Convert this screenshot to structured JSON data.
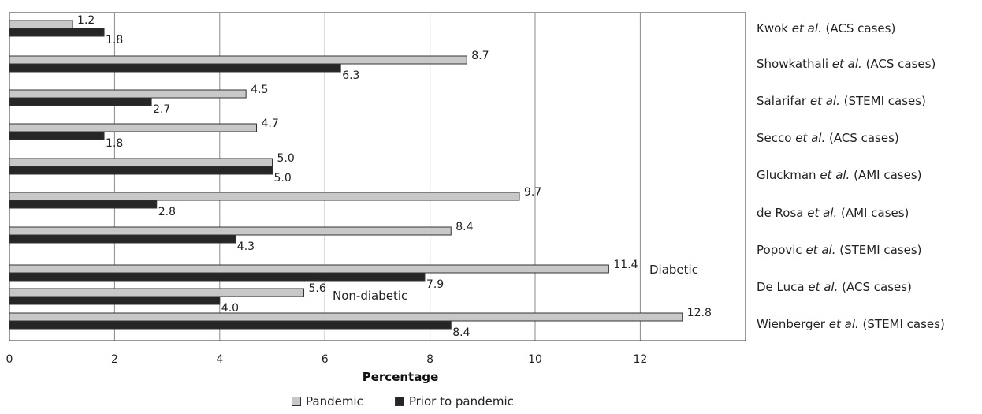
{
  "chart_data": {
    "type": "bar",
    "orientation": "horizontal",
    "xlabel": "Percentage",
    "xlim": [
      0,
      14
    ],
    "x_ticks": [
      0,
      2,
      4,
      6,
      8,
      10,
      12
    ],
    "grid": "vertical",
    "legend_position": "bottom",
    "series": [
      {
        "name": "Pandemic",
        "color": "#c8c8c8"
      },
      {
        "name": "Prior to pandemic",
        "color": "#262626"
      }
    ],
    "rows": [
      {
        "values": [
          1.2,
          1.8
        ],
        "labels": [
          "1.2",
          "1.8"
        ]
      },
      {
        "values": [
          8.7,
          6.3
        ],
        "labels": [
          "8.7",
          "6.3"
        ]
      },
      {
        "values": [
          4.5,
          2.7
        ],
        "labels": [
          "4.5",
          "2.7"
        ]
      },
      {
        "values": [
          4.7,
          1.8
        ],
        "labels": [
          "4.7",
          "1.8"
        ]
      },
      {
        "values": [
          5.0,
          5.0
        ],
        "labels": [
          "5.0",
          "5.0"
        ]
      },
      {
        "values": [
          9.7,
          2.8
        ],
        "labels": [
          "9.7",
          "2.8"
        ]
      },
      {
        "values": [
          8.4,
          4.3
        ],
        "labels": [
          "8.4",
          "4.3"
        ]
      },
      {
        "values": [
          11.4,
          7.9
        ],
        "labels": [
          "11.4",
          "7.9"
        ],
        "annotation": "Diabetic"
      },
      {
        "values": [
          5.6,
          4.0
        ],
        "labels": [
          "5.6",
          "4.0"
        ],
        "annotation": "Non-diabetic"
      },
      {
        "values": [
          12.8,
          8.4
        ],
        "labels": [
          "12.8",
          "8.4"
        ]
      }
    ],
    "categories": [
      {
        "pre": "Kwok ",
        "em": "et al.",
        "post": " (ACS cases)"
      },
      {
        "pre": "Showkathali ",
        "em": "et al.",
        "post": " (ACS cases)"
      },
      {
        "pre": "Salarifar ",
        "em": "et al.",
        "post": " (STEMI cases)"
      },
      {
        "pre": "Secco ",
        "em": "et al.",
        "post": " (ACS cases)"
      },
      {
        "pre": "Gluckman ",
        "em": "et al.",
        "post": " (AMI cases)"
      },
      {
        "pre": "de Rosa ",
        "em": "et al.",
        "post": " (AMI cases)"
      },
      {
        "pre": "Popovic ",
        "em": "et al.",
        "post": " (STEMI cases)"
      },
      {
        "pre": "De Luca ",
        "em": "et al.",
        "post": " (ACS cases)"
      },
      {
        "pre": "Wienberger ",
        "em": "et al.",
        "post": " (STEMI cases)"
      }
    ]
  }
}
